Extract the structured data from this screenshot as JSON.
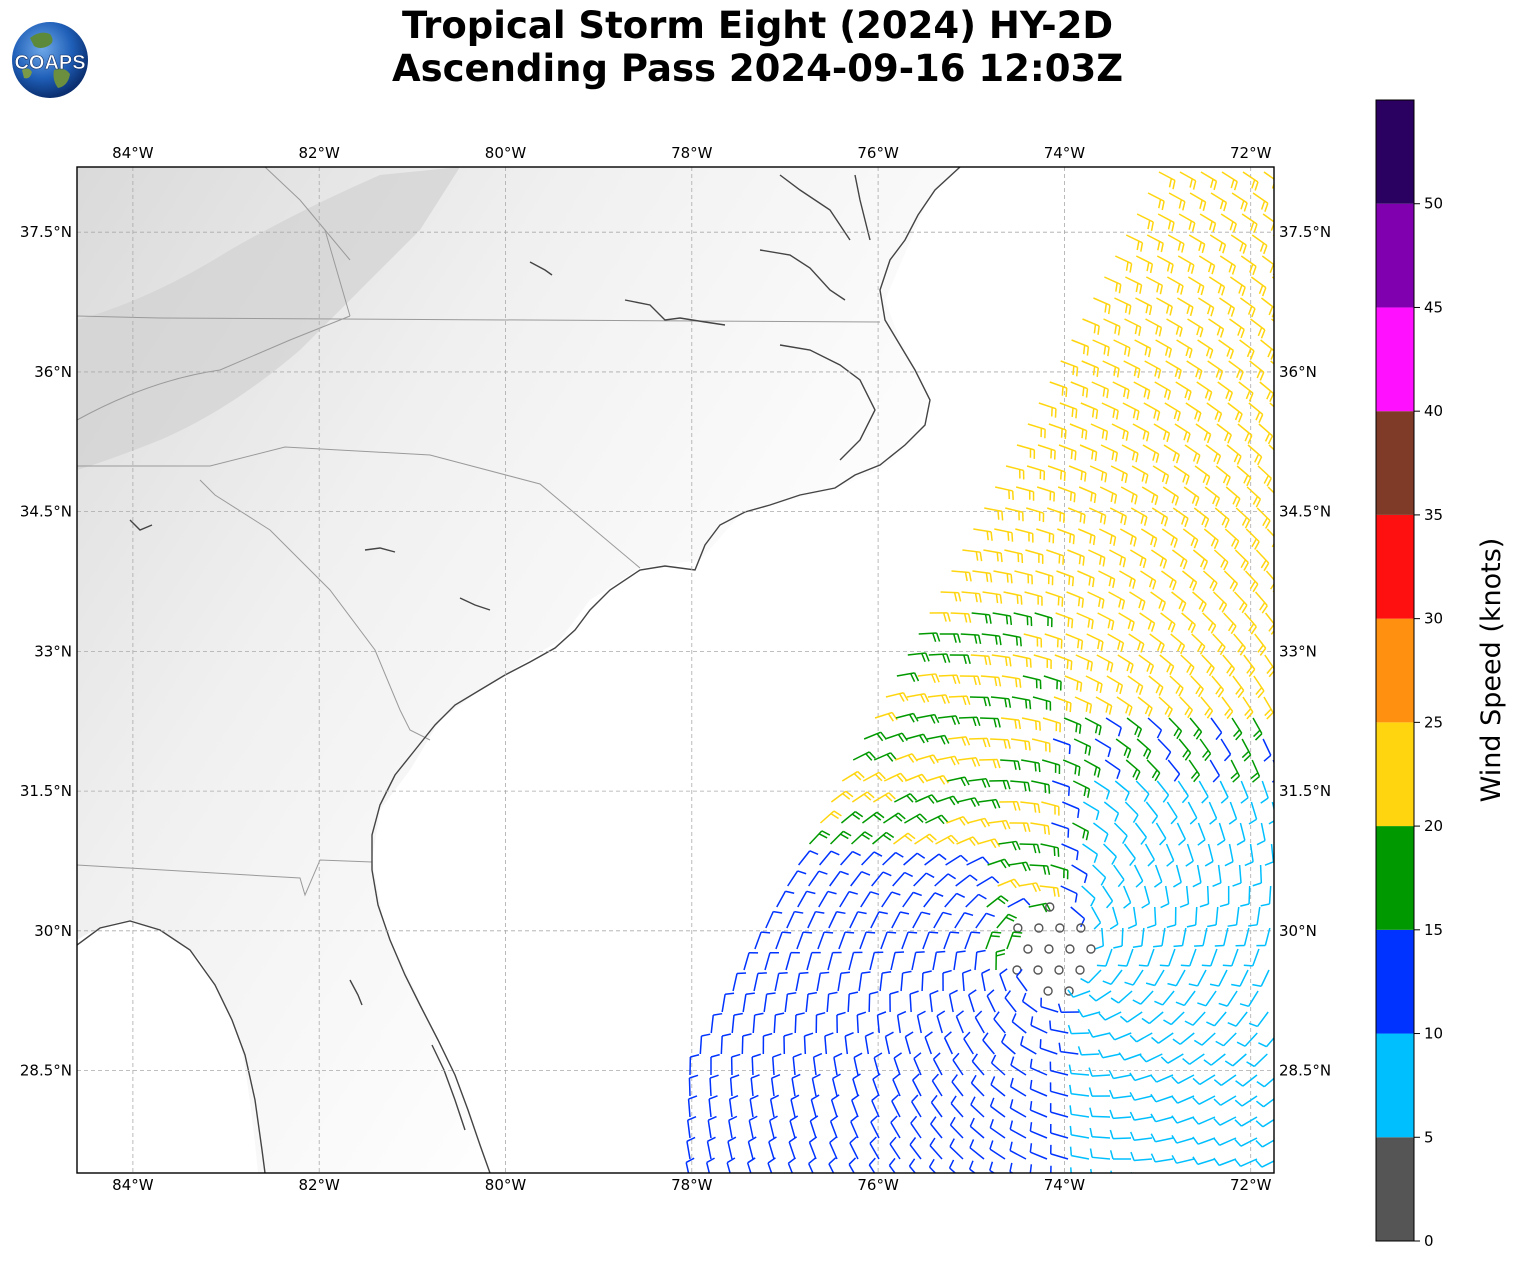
{
  "title": {
    "line1": "Tropical Storm Eight (2024) HY-2D",
    "line2": "Ascending Pass 2024-09-16 12:03Z"
  },
  "logo": {
    "text": "COAPS",
    "icon": "globe-icon"
  },
  "map": {
    "extent": {
      "lon_min": -84.6,
      "lon_max": -71.75,
      "lat_min": 27.4,
      "lat_max": 38.2
    },
    "lon_ticks": [
      {
        "value": -84,
        "label": "84°W"
      },
      {
        "value": -82,
        "label": "82°W"
      },
      {
        "value": -80,
        "label": "80°W"
      },
      {
        "value": -78,
        "label": "78°W"
      },
      {
        "value": -76,
        "label": "76°W"
      },
      {
        "value": -74,
        "label": "74°W"
      },
      {
        "value": -72,
        "label": "72°W"
      }
    ],
    "lat_ticks": [
      {
        "value": 37.5,
        "label": "37.5°N"
      },
      {
        "value": 36,
        "label": "36°N"
      },
      {
        "value": 34.5,
        "label": "34.5°N"
      },
      {
        "value": 33,
        "label": "33°N"
      },
      {
        "value": 31.5,
        "label": "31.5°N"
      },
      {
        "value": 30,
        "label": "30°N"
      },
      {
        "value": 28.5,
        "label": "28.5°N"
      }
    ],
    "gridlines": true,
    "storm_center_approx": {
      "lon": -74.1,
      "lat": 29.8
    },
    "wind_barbs": "swath of HY-2D ascending pass wind barbs, colored by wind speed"
  },
  "colorbar": {
    "label": "Wind Speed (knots)",
    "ticks": [
      "0",
      "5",
      "10",
      "15",
      "20",
      "25",
      "30",
      "35",
      "40",
      "45",
      "50"
    ],
    "bins": [
      {
        "min": 0,
        "max": 5,
        "color": "#555555"
      },
      {
        "min": 5,
        "max": 10,
        "color": "#00bfff"
      },
      {
        "min": 10,
        "max": 15,
        "color": "#0033ff"
      },
      {
        "min": 15,
        "max": 20,
        "color": "#009900"
      },
      {
        "min": 20,
        "max": 25,
        "color": "#ffd510"
      },
      {
        "min": 25,
        "max": 30,
        "color": "#ff9010"
      },
      {
        "min": 30,
        "max": 35,
        "color": "#ff1010"
      },
      {
        "min": 35,
        "max": 40,
        "color": "#7f3a28"
      },
      {
        "min": 40,
        "max": 45,
        "color": "#ff10ff"
      },
      {
        "min": 45,
        "max": 50,
        "color": "#8000b0"
      },
      {
        "min": 50,
        "max": 55,
        "color": "#2a0060"
      }
    ]
  }
}
